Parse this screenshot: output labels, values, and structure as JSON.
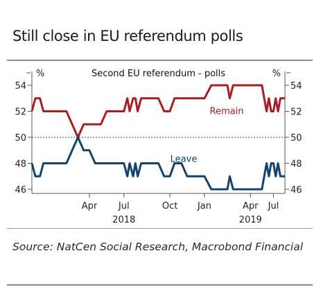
{
  "title": "Still close in EU referendum polls",
  "source": "Source: NatCen Social Research, Macrobond Financial",
  "chart_data": {
    "type": "line",
    "title": "Second EU referendum - polls",
    "left_unit": "%",
    "right_unit": "%",
    "ylim": [
      46,
      54
    ],
    "yticks": [
      46,
      48,
      50,
      52,
      54
    ],
    "reference_line": 50,
    "x_ticks": [
      {
        "x": 5,
        "label": "Apr"
      },
      {
        "x": 8,
        "label": "Jul"
      },
      {
        "x": 12,
        "label": "Oct"
      },
      {
        "x": 15,
        "label": "Jan"
      },
      {
        "x": 19,
        "label": "Apr"
      },
      {
        "x": 21,
        "label": "Jul"
      }
    ],
    "year_labels": [
      {
        "x": 8,
        "label": "2018"
      },
      {
        "x": 19,
        "label": "2019"
      }
    ],
    "series": [
      {
        "name": "Remain",
        "color": "#a81c22",
        "points": [
          [
            0,
            52
          ],
          [
            0.3,
            53
          ],
          [
            0.7,
            53
          ],
          [
            1,
            52
          ],
          [
            2,
            52
          ],
          [
            3,
            52
          ],
          [
            4,
            50
          ],
          [
            4.5,
            51
          ],
          [
            5,
            51
          ],
          [
            6,
            51
          ],
          [
            6.5,
            52
          ],
          [
            7,
            52
          ],
          [
            8,
            52
          ],
          [
            8.3,
            53
          ],
          [
            8.5,
            52
          ],
          [
            8.8,
            53
          ],
          [
            9,
            53
          ],
          [
            9.2,
            52
          ],
          [
            9.5,
            53
          ],
          [
            10,
            53
          ],
          [
            11,
            53
          ],
          [
            11.5,
            52
          ],
          [
            12,
            52
          ],
          [
            12.4,
            53
          ],
          [
            13,
            53
          ],
          [
            14,
            53
          ],
          [
            15,
            53
          ],
          [
            15.6,
            54
          ],
          [
            16,
            54
          ],
          [
            17,
            54
          ],
          [
            17.2,
            53
          ],
          [
            17.5,
            54
          ],
          [
            18,
            54
          ],
          [
            19,
            54
          ],
          [
            20,
            54
          ],
          [
            20.2,
            53
          ],
          [
            20.4,
            52
          ],
          [
            20.6,
            53
          ],
          [
            20.8,
            52
          ],
          [
            21,
            52
          ],
          [
            21.2,
            53
          ],
          [
            21.4,
            52
          ],
          [
            21.6,
            53
          ],
          [
            22,
            53
          ]
        ]
      },
      {
        "name": "Leave",
        "color": "#13426b",
        "points": [
          [
            0,
            48
          ],
          [
            0.3,
            47
          ],
          [
            0.7,
            47
          ],
          [
            1,
            48
          ],
          [
            2,
            48
          ],
          [
            3,
            48
          ],
          [
            4,
            50
          ],
          [
            4.5,
            49
          ],
          [
            5,
            49
          ],
          [
            5.5,
            48
          ],
          [
            6,
            48
          ],
          [
            7,
            48
          ],
          [
            8,
            48
          ],
          [
            8.3,
            47
          ],
          [
            8.5,
            48
          ],
          [
            8.8,
            47
          ],
          [
            9,
            48
          ],
          [
            9.2,
            47
          ],
          [
            9.5,
            48
          ],
          [
            10,
            48
          ],
          [
            11,
            48
          ],
          [
            11.5,
            47
          ],
          [
            12,
            47
          ],
          [
            12.4,
            48
          ],
          [
            13,
            48
          ],
          [
            13.5,
            47
          ],
          [
            14,
            47
          ],
          [
            15,
            47
          ],
          [
            15.6,
            46
          ],
          [
            16,
            46
          ],
          [
            17,
            46
          ],
          [
            17.2,
            47
          ],
          [
            17.5,
            46
          ],
          [
            18,
            46
          ],
          [
            19,
            46
          ],
          [
            20,
            46
          ],
          [
            20.2,
            47
          ],
          [
            20.4,
            48
          ],
          [
            20.6,
            47
          ],
          [
            20.8,
            48
          ],
          [
            21,
            48
          ],
          [
            21.2,
            47
          ],
          [
            21.4,
            48
          ],
          [
            21.6,
            47
          ],
          [
            22,
            47
          ]
        ]
      }
    ],
    "xlim": [
      0,
      22
    ]
  }
}
